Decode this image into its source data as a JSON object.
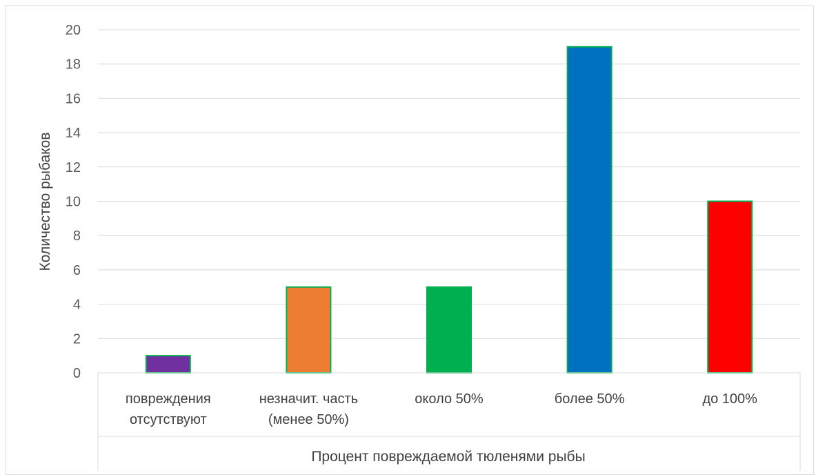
{
  "chart_data": {
    "type": "bar",
    "categories": [
      [
        "повреждения",
        "отсутствуют"
      ],
      [
        "незначит. часть",
        "(менее 50%)"
      ],
      [
        "около 50%"
      ],
      [
        "более 50%"
      ],
      [
        "до 100%"
      ]
    ],
    "values": [
      1,
      5,
      5,
      19,
      10
    ],
    "bar_colors": [
      "#7030a0",
      "#ed7d31",
      "#00b050",
      "#0070c0",
      "#ff0000"
    ],
    "bar_outline_color": "#00b050",
    "ylabel": "Количество рыбаков",
    "xlabel": "Процент повреждаемой тюленями рыбы",
    "ylim": [
      0,
      20
    ],
    "yticks": [
      0,
      2,
      4,
      6,
      8,
      10,
      12,
      14,
      16,
      18,
      20
    ],
    "grid": true,
    "legend": "none"
  }
}
